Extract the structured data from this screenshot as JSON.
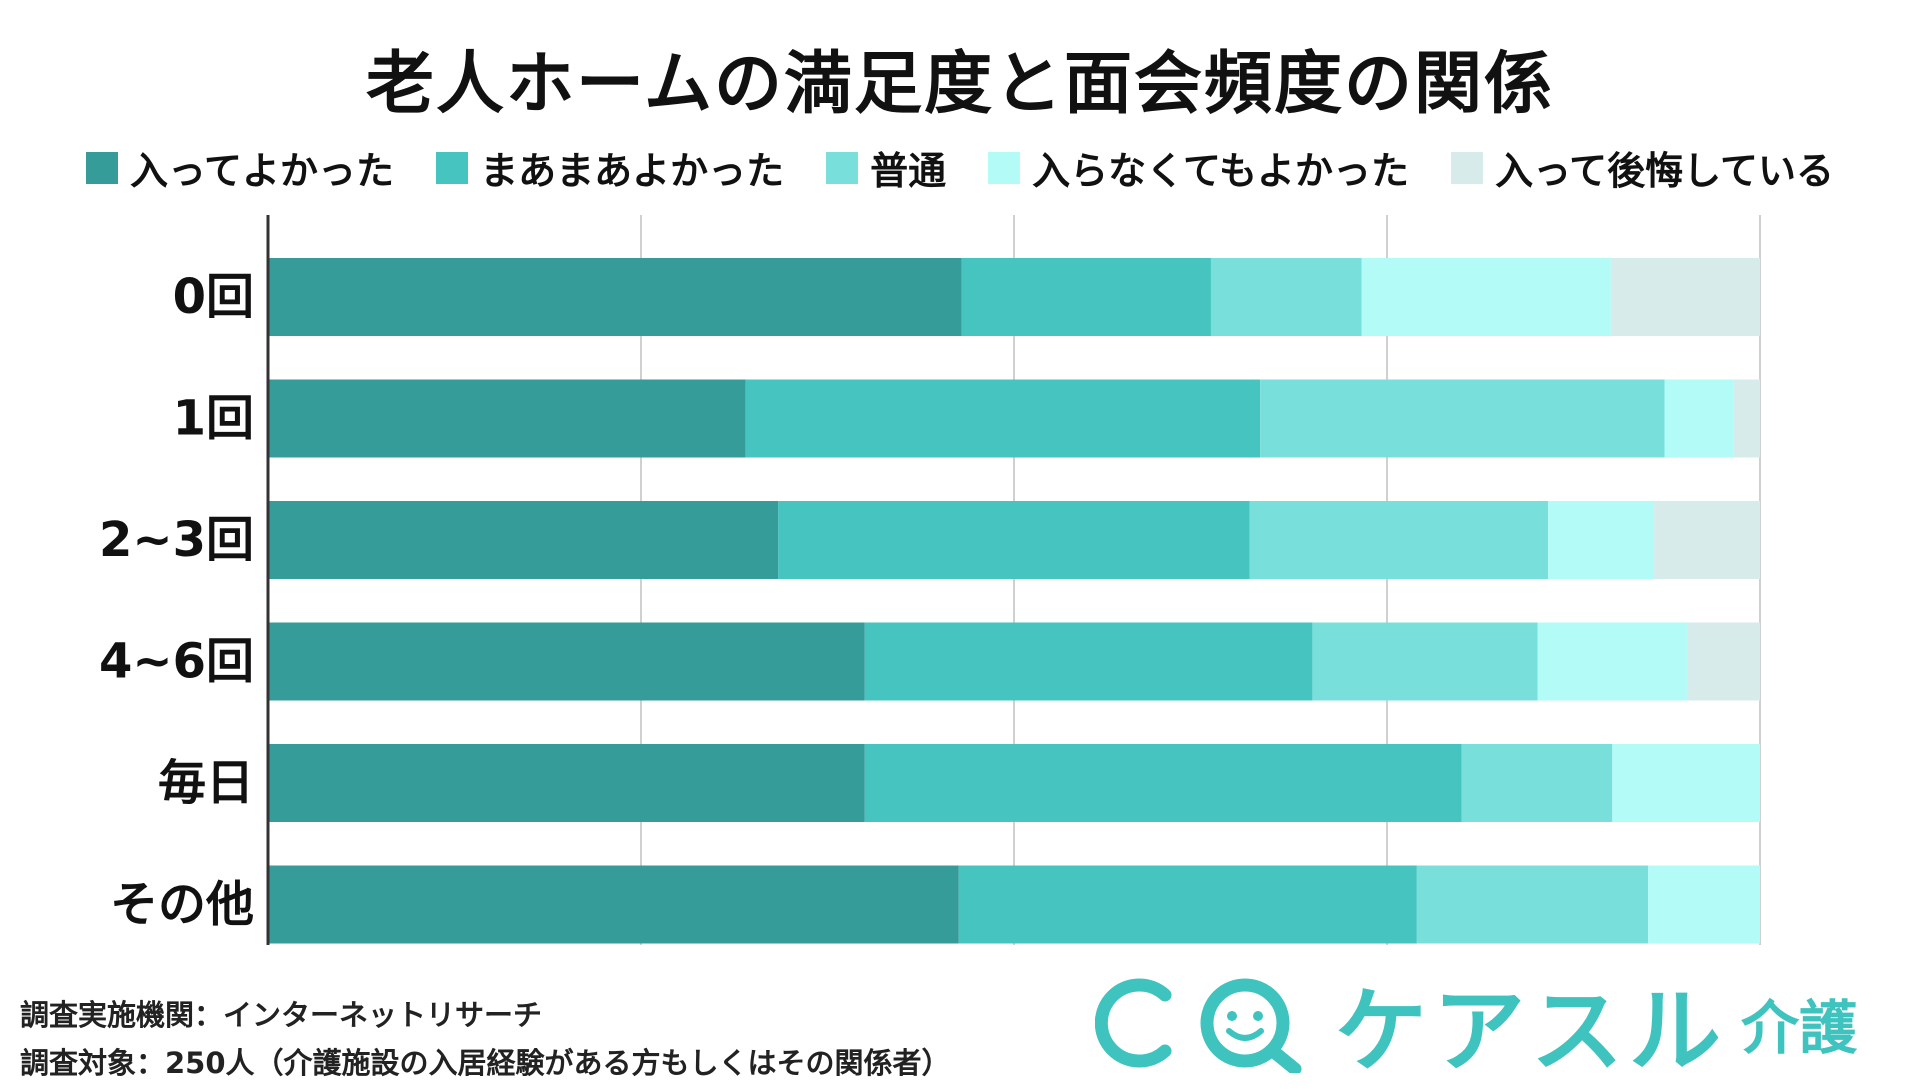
{
  "title": "老人ホームの満足度と面会頻度の関係",
  "legend": [
    {
      "label": "入ってよかった",
      "color": "#359c9a"
    },
    {
      "label": "まあまあよかった",
      "color": "#45c4c0"
    },
    {
      "label": "普通",
      "color": "#79dfdb"
    },
    {
      "label": "入らなくてもよかった",
      "color": "#b2fbf7"
    },
    {
      "label": "入って後悔している",
      "color": "#d8ebeb"
    }
  ],
  "chart_data": {
    "type": "bar",
    "orientation": "horizontal",
    "stacked": true,
    "normalized": true,
    "categories": [
      "0回",
      "1回",
      "2~3回",
      "4~6回",
      "毎日",
      "その他"
    ],
    "series": [
      {
        "name": "入ってよかった",
        "color": "#359c9a",
        "values": [
          46.5,
          32.0,
          34.2,
          40.0,
          40.0,
          46.3
        ]
      },
      {
        "name": "まあまあよかった",
        "color": "#45c4c0",
        "values": [
          16.7,
          34.5,
          31.6,
          30.0,
          40.0,
          30.7
        ]
      },
      {
        "name": "普通",
        "color": "#79dfdb",
        "values": [
          10.1,
          27.1,
          20.0,
          15.1,
          10.1,
          15.5
        ]
      },
      {
        "name": "入らなくてもよかった",
        "color": "#b2fbf7",
        "values": [
          16.7,
          4.6,
          7.1,
          10.0,
          9.9,
          7.5
        ]
      },
      {
        "name": "入って後悔している",
        "color": "#d8ebeb",
        "values": [
          10.0,
          1.8,
          7.1,
          4.9,
          0,
          0
        ]
      }
    ],
    "xlim": [
      0,
      100
    ],
    "grid": true,
    "legend_position": "top"
  },
  "footer": {
    "line1": "調査実施機関：インターネットリサーチ",
    "line2": "調査対象：250人（介護施設の入居経験がある方もしくはその関係者）"
  },
  "logo": {
    "text": "ケアスル",
    "sub": "介護",
    "color": "#3fc3bf"
  }
}
